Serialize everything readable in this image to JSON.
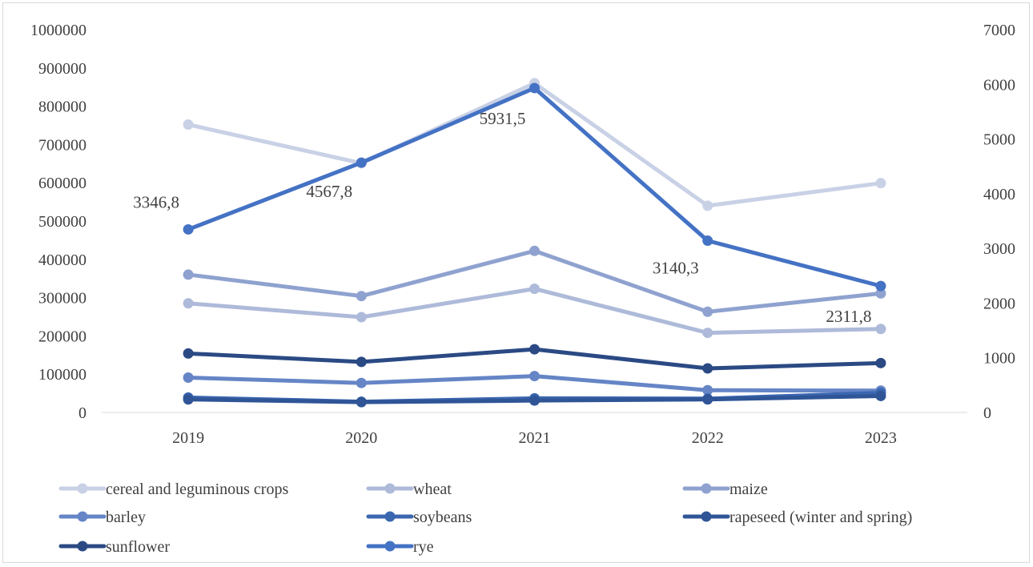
{
  "chart_data": {
    "type": "line",
    "categories": [
      "2019",
      "2020",
      "2021",
      "2022",
      "2023"
    ],
    "y_left": {
      "min": 0,
      "max": 1000000,
      "ticks": [
        "0",
        "100000",
        "200000",
        "300000",
        "400000",
        "500000",
        "600000",
        "700000",
        "800000",
        "900000",
        "1000000"
      ]
    },
    "y_right": {
      "min": 0,
      "max": 7000,
      "ticks": [
        "0",
        "1000",
        "2000",
        "3000",
        "4000",
        "5000",
        "6000",
        "7000"
      ]
    },
    "grid": false,
    "legend_position": "bottom",
    "series": [
      {
        "name": "cereal and leguminous crops",
        "axis": "left",
        "color": "#c9d1e6",
        "values": [
          752000,
          651000,
          860000,
          540000,
          599000
        ]
      },
      {
        "name": "wheat",
        "axis": "left",
        "color": "#aebad9",
        "values": [
          285000,
          249000,
          323000,
          208000,
          218000
        ]
      },
      {
        "name": "maize",
        "axis": "left",
        "color": "#8fa2cf",
        "values": [
          360000,
          304000,
          422000,
          263000,
          311000
        ]
      },
      {
        "name": "barley",
        "axis": "left",
        "color": "#6585c6",
        "values": [
          91000,
          77000,
          95000,
          58000,
          57000
        ]
      },
      {
        "name": "soybeans",
        "axis": "left",
        "color": "#3b66b0",
        "values": [
          39000,
          28000,
          37000,
          36000,
          51000
        ]
      },
      {
        "name": "rapeseed (winter and spring)",
        "axis": "left",
        "color": "#2f5597",
        "values": [
          34000,
          27000,
          31000,
          34000,
          43000
        ]
      },
      {
        "name": "sunflower",
        "axis": "left",
        "color": "#2b4a84",
        "values": [
          154000,
          132000,
          165000,
          115000,
          129000
        ]
      },
      {
        "name": "rye",
        "axis": "right",
        "color": "#4472c4",
        "values": [
          3346.8,
          4567.8,
          5931.5,
          3140.3,
          2311.8
        ],
        "labels": [
          "3346,8",
          "4567,8",
          "5931,5",
          "3140,3",
          "2311,8"
        ]
      }
    ]
  }
}
